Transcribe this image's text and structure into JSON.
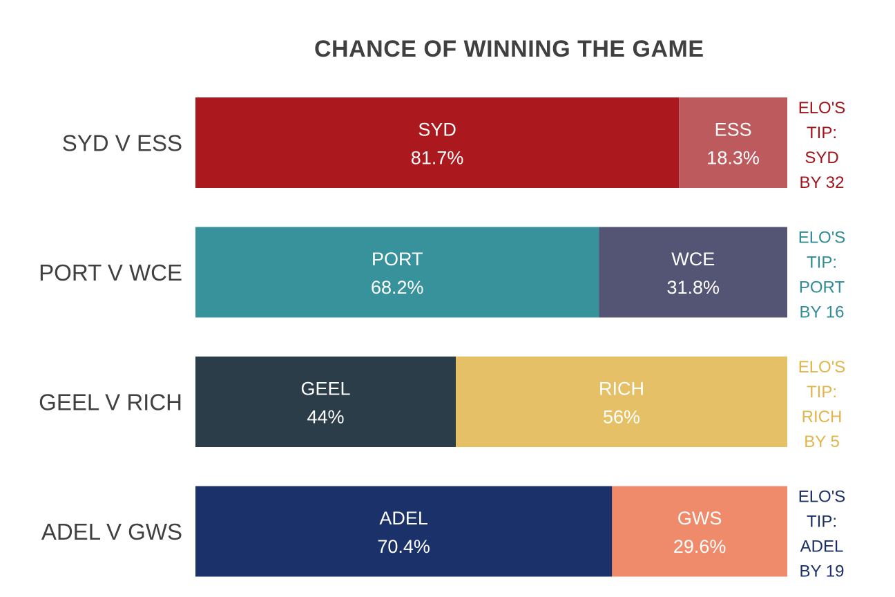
{
  "chart_data": {
    "type": "bar",
    "stacked": true,
    "orientation": "horizontal",
    "title": "CHANCE OF WINNING THE GAME",
    "xlim": [
      0,
      100
    ],
    "grid": false,
    "categories": [
      "SYD V ESS",
      "PORT V WCE",
      "GEEL V RICH",
      "ADEL V GWS"
    ],
    "matches": [
      {
        "label": "SYD V ESS",
        "left": {
          "team": "SYD",
          "pct_label": "81.7%",
          "value": 81.7,
          "color": "#ab181d"
        },
        "right": {
          "team": "ESS",
          "pct_label": "18.3%",
          "value": 18.3,
          "color": "#bd5a5e"
        },
        "tip": {
          "lines": [
            "ELO'S",
            "TIP:",
            "SYD",
            "BY 32"
          ],
          "color": "#a3131a"
        }
      },
      {
        "label": "PORT V WCE",
        "left": {
          "team": "PORT",
          "pct_label": "68.2%",
          "value": 68.2,
          "color": "#38929c"
        },
        "right": {
          "team": "WCE",
          "pct_label": "31.8%",
          "value": 31.8,
          "color": "#545475"
        },
        "tip": {
          "lines": [
            "ELO'S",
            "TIP:",
            "PORT",
            "BY 16"
          ],
          "color": "#2f8c96"
        }
      },
      {
        "label": "GEEL V RICH",
        "left": {
          "team": "GEEL",
          "pct_label": "44%",
          "value": 44,
          "color": "#2b3d49"
        },
        "right": {
          "team": "RICH",
          "pct_label": "56%",
          "value": 56,
          "color": "#e6c066"
        },
        "tip": {
          "lines": [
            "ELO'S",
            "TIP:",
            "RICH",
            "BY 5"
          ],
          "color": "#e2b44a"
        }
      },
      {
        "label": "ADEL V GWS",
        "left": {
          "team": "ADEL",
          "pct_label": "70.4%",
          "value": 70.4,
          "color": "#1b316a"
        },
        "right": {
          "team": "GWS",
          "pct_label": "29.6%",
          "value": 29.6,
          "color": "#ef8b6b"
        },
        "tip": {
          "lines": [
            "ELO'S",
            "TIP:",
            "ADEL",
            "BY 19"
          ],
          "color": "#1a2f66"
        }
      }
    ]
  }
}
